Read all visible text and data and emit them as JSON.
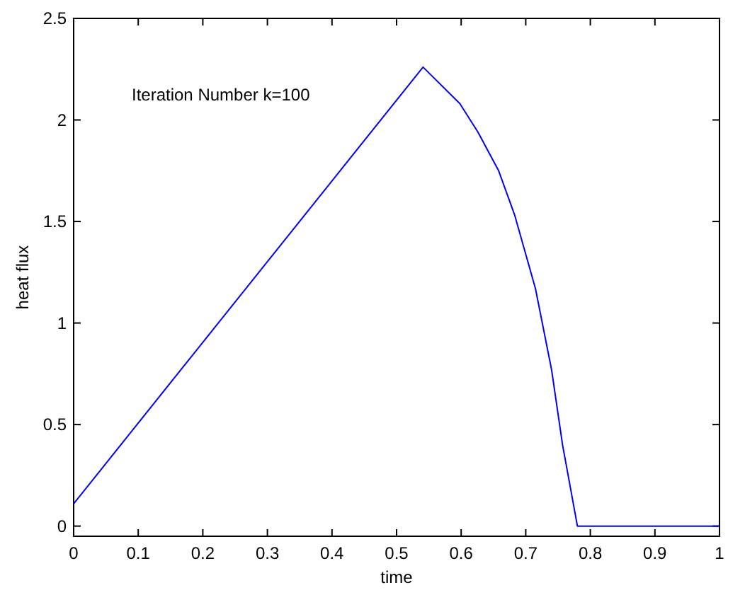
{
  "chart_data": {
    "type": "line",
    "xlabel": "time",
    "ylabel": "heat flux",
    "annotations": [
      "Iteration Number k=100"
    ],
    "x": [
      0,
      0.541,
      0.598,
      0.626,
      0.658,
      0.683,
      0.715,
      0.74,
      0.757,
      0.78,
      1
    ],
    "series": [
      {
        "color": "#0000ff",
        "values": [
          0.11,
          2.26,
          2.08,
          1.94,
          1.75,
          1.53,
          1.17,
          0.77,
          0.4,
          0,
          0
        ]
      }
    ],
    "xlim": [
      0,
      1
    ],
    "ylim": [
      -0.05,
      2.5
    ],
    "xticks": [
      0,
      0.1,
      0.2,
      0.3,
      0.4,
      0.5,
      0.6,
      0.7,
      0.8,
      0.9,
      1
    ],
    "yticks": [
      0,
      0.5,
      1,
      1.5,
      2,
      2.5
    ],
    "grid": false,
    "marker": "none",
    "line_style": "solid"
  }
}
